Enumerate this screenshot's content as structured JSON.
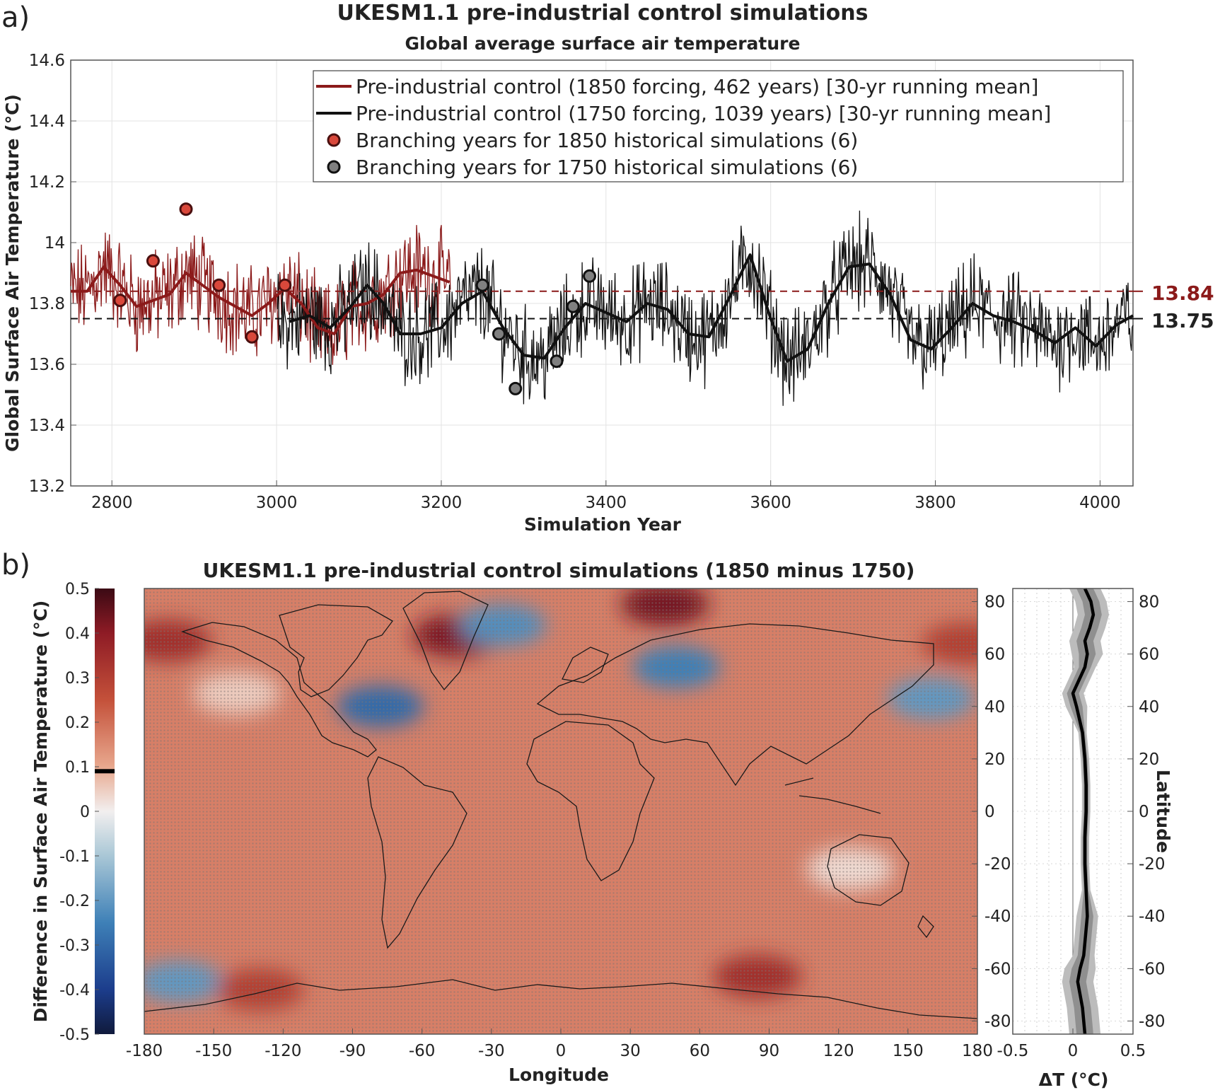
{
  "chart_data": [
    {
      "type": "line",
      "panel_label": "a)",
      "title": "UKESM1.1 pre-industrial control simulations",
      "subtitle": "Global average surface air temperature",
      "xlabel": "Simulation Year",
      "ylabel": "Global Surface Air Temperature (°C)",
      "xlim": [
        2750,
        4040
      ],
      "ylim": [
        13.2,
        14.6
      ],
      "x_ticks": [
        "2800",
        "3000",
        "3200",
        "3400",
        "3600",
        "3800",
        "4000"
      ],
      "y_ticks": [
        "13.2",
        "13.4",
        "13.6",
        "13.8",
        "14",
        "14.2",
        "14.4",
        "14.6"
      ],
      "grid": true,
      "legend_position": "top-right",
      "series": [
        {
          "name": "Pre-industrial control (1850 forcing, 462 years) [30-yr running mean]",
          "color": "#8b1a1a",
          "x": [
            2750,
            2770,
            2790,
            2810,
            2830,
            2850,
            2870,
            2890,
            2910,
            2930,
            2950,
            2970,
            2990,
            3010,
            3030,
            3050,
            3070,
            3090,
            3110,
            3130,
            3150,
            3170,
            3190,
            3210
          ],
          "values": [
            13.84,
            13.84,
            13.92,
            13.86,
            13.79,
            13.81,
            13.83,
            13.9,
            13.86,
            13.82,
            13.79,
            13.76,
            13.8,
            13.85,
            13.8,
            13.72,
            13.7,
            13.79,
            13.8,
            13.83,
            13.9,
            13.91,
            13.89,
            13.87
          ],
          "annual_x_range": [
            2750,
            3211
          ],
          "annual_y_range": [
            13.48,
            14.21
          ]
        },
        {
          "name": "Pre-industrial control (1750 forcing, 1039 years) [30-yr running mean]",
          "color": "#111111",
          "x": [
            3015,
            3040,
            3065,
            3090,
            3110,
            3130,
            3150,
            3175,
            3200,
            3225,
            3250,
            3275,
            3300,
            3325,
            3350,
            3375,
            3400,
            3425,
            3450,
            3475,
            3500,
            3525,
            3550,
            3575,
            3600,
            3620,
            3645,
            3670,
            3695,
            3720,
            3745,
            3770,
            3795,
            3820,
            3845,
            3870,
            3895,
            3920,
            3945,
            3970,
            3995,
            4020,
            4040
          ],
          "values": [
            13.74,
            13.76,
            13.72,
            13.79,
            13.86,
            13.8,
            13.7,
            13.7,
            13.72,
            13.8,
            13.84,
            13.72,
            13.63,
            13.62,
            13.72,
            13.8,
            13.77,
            13.74,
            13.8,
            13.78,
            13.7,
            13.69,
            13.82,
            13.96,
            13.75,
            13.61,
            13.65,
            13.8,
            13.92,
            13.93,
            13.83,
            13.68,
            13.65,
            13.72,
            13.8,
            13.76,
            13.74,
            13.71,
            13.67,
            13.72,
            13.66,
            13.73,
            13.76
          ],
          "annual_x_range": [
            3001,
            4040
          ],
          "annual_y_range": [
            13.31,
            14.2
          ]
        },
        {
          "name": "Branching years for 1850 historical simulations (6)",
          "type": "scatter",
          "color": "#d9483b",
          "x": [
            2810,
            2850,
            2890,
            2930,
            2970,
            3010
          ],
          "values": [
            13.81,
            13.94,
            14.11,
            13.86,
            13.69,
            13.86
          ]
        },
        {
          "name": "Branching years for 1750 historical simulations (6)",
          "type": "scatter",
          "color": "#808080",
          "x": [
            3250,
            3270,
            3290,
            3340,
            3360,
            3380
          ],
          "values": [
            13.86,
            13.7,
            13.52,
            13.61,
            13.79,
            13.89
          ]
        }
      ],
      "reference_lines": [
        {
          "value": 13.84,
          "label": "13.84",
          "color": "#8b1a1a"
        },
        {
          "value": 13.75,
          "label": "13.75",
          "color": "#111111"
        }
      ]
    },
    {
      "type": "heatmap",
      "panel_label": "b)",
      "title": "UKESM1.1 pre-industrial control simulations (1850 minus 1750)",
      "xlabel": "Longitude",
      "ylabel": "Latitude",
      "colorbar_label": "Difference in Surface Air Temperature (°C)",
      "xlim": [
        -180,
        180
      ],
      "ylim": [
        -85,
        85
      ],
      "clim": [
        -0.5,
        0.5
      ],
      "x_ticks": [
        "-180",
        "-150",
        "-120",
        "-90",
        "-60",
        "-30",
        "0",
        "30",
        "60",
        "90",
        "120",
        "150",
        "180"
      ],
      "y_ticks": [
        "80",
        "60",
        "40",
        "20",
        "0",
        "-20",
        "-40",
        "-60",
        "-80"
      ],
      "colorbar_ticks": [
        "0.5",
        "0.4",
        "0.3",
        "0.2",
        "0.1",
        "0",
        "-0.1",
        "-0.2",
        "-0.3",
        "-0.4",
        "-0.5"
      ],
      "colorbar_marker": 0.09,
      "background_value": 0.17,
      "features": [
        {
          "lon": -45,
          "lat": 67,
          "value": 0.42
        },
        {
          "lon": 45,
          "lat": 79,
          "value": 0.43
        },
        {
          "lon": -170,
          "lat": 65,
          "value": 0.35
        },
        {
          "lon": 175,
          "lat": 64,
          "value": 0.3
        },
        {
          "lon": -78,
          "lat": 40,
          "value": -0.3
        },
        {
          "lon": -25,
          "lat": 71,
          "value": -0.22
        },
        {
          "lon": 50,
          "lat": 55,
          "value": -0.25
        },
        {
          "lon": 160,
          "lat": 43,
          "value": -0.2
        },
        {
          "lon": -165,
          "lat": -65,
          "value": -0.2
        },
        {
          "lon": 85,
          "lat": -63,
          "value": 0.35
        },
        {
          "lon": -140,
          "lat": 45,
          "value": 0.05
        },
        {
          "lon": -130,
          "lat": -68,
          "value": 0.3
        },
        {
          "lon": 125,
          "lat": -22,
          "value": 0.03
        }
      ]
    },
    {
      "type": "line",
      "title": "",
      "xlabel": "ΔT (°C)",
      "ylabel": "Latitude",
      "xlim": [
        -0.5,
        0.5
      ],
      "ylim": [
        -85,
        85
      ],
      "x_ticks": [
        "-0.5",
        "0",
        "0.5"
      ],
      "y_ticks": [
        "80",
        "60",
        "40",
        "20",
        "0",
        "-20",
        "-40",
        "-60",
        "-80"
      ],
      "series": [
        {
          "color": "#000000",
          "lat": [
            -85,
            -80,
            -75,
            -70,
            -65,
            -60,
            -55,
            -50,
            -40,
            -30,
            -20,
            -10,
            0,
            10,
            20,
            30,
            40,
            45,
            50,
            55,
            60,
            65,
            70,
            75,
            80,
            85
          ],
          "values": [
            0.1,
            0.09,
            0.08,
            0.06,
            0.04,
            0.06,
            0.09,
            0.1,
            0.12,
            0.11,
            0.1,
            0.1,
            0.11,
            0.11,
            0.1,
            0.08,
            0.03,
            0.0,
            0.05,
            0.1,
            0.12,
            0.1,
            0.14,
            0.17,
            0.15,
            0.1
          ]
        }
      ]
    }
  ]
}
